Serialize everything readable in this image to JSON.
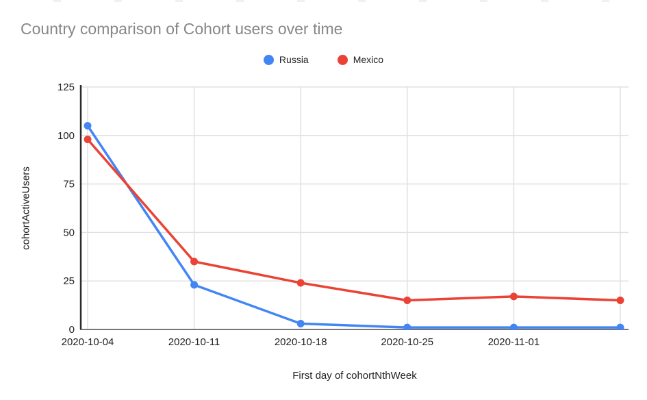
{
  "chart_data": {
    "type": "line",
    "title": "Country comparison of Cohort users over time",
    "xlabel": "First day of cohortNthWeek",
    "ylabel": "cohortActiveUsers",
    "x_tick_labels": [
      "2020-10-04",
      "2020-10-11",
      "2020-10-18",
      "2020-10-25",
      "2020-11-01"
    ],
    "num_points": 6,
    "series": [
      {
        "name": "Russia",
        "color": "#4285F4",
        "values": [
          105,
          23,
          3,
          1,
          1,
          1
        ]
      },
      {
        "name": "Mexico",
        "color": "#EA4335",
        "values": [
          98,
          35,
          24,
          15,
          17,
          15
        ]
      }
    ],
    "ylim": [
      0,
      125
    ],
    "yticks": [
      0,
      25,
      50,
      75,
      100,
      125
    ],
    "grid": true,
    "legend_position": "top-center"
  },
  "colors": {
    "background": "#ffffff",
    "title_text": "#878787",
    "axis_text": "#212121",
    "legend_text": "#202124",
    "gridline": "#e0e0e0",
    "x_axis_line": "#757575",
    "y_axis_line": "#2b2b2b"
  }
}
